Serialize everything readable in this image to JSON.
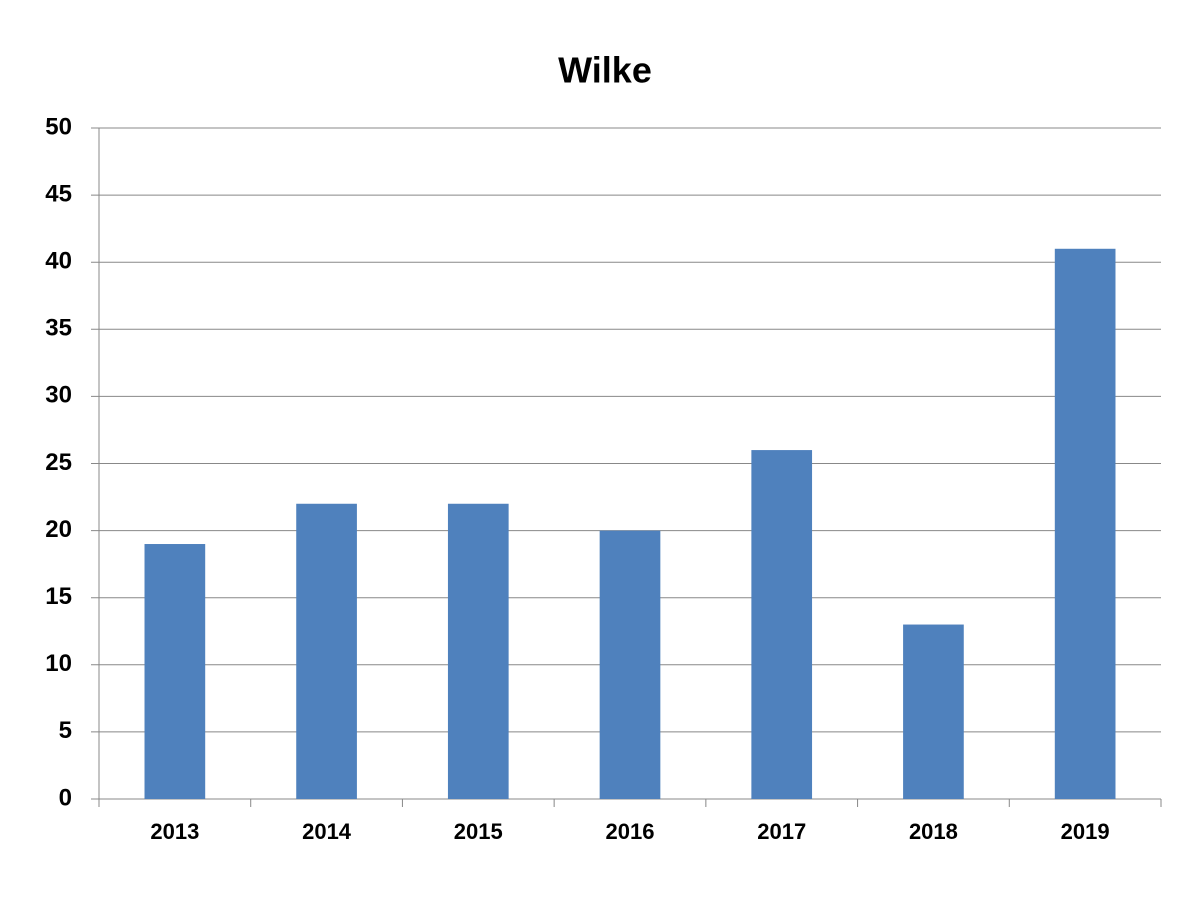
{
  "chart_data": {
    "type": "bar",
    "title": "Wilke",
    "categories": [
      "2013",
      "2014",
      "2015",
      "2016",
      "2017",
      "2018",
      "2019"
    ],
    "values": [
      19,
      22,
      22,
      20,
      26,
      13,
      41
    ],
    "color": "#4f81bd",
    "ylim": [
      0,
      50
    ],
    "yticks": [
      0,
      5,
      10,
      15,
      20,
      25,
      30,
      35,
      40,
      45,
      50
    ],
    "grid": true
  }
}
